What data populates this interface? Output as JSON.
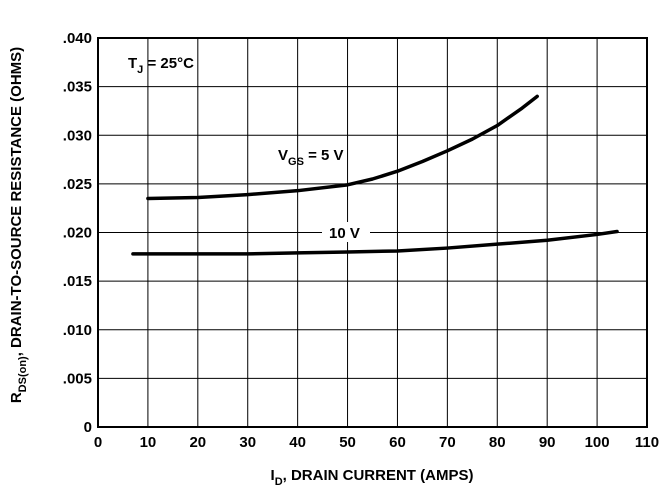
{
  "chart_data": {
    "type": "line",
    "xlabel": {
      "main": "I",
      "sub": "D",
      "rest": ", DRAIN CURRENT (AMPS)"
    },
    "ylabel": {
      "main": "R",
      "sub": "DS(on)",
      "rest": ", DRAIN-TO-SOURCE RESISTANCE (OHMS)"
    },
    "xlim": [
      0,
      110
    ],
    "ylim": [
      0,
      0.04
    ],
    "grid": true,
    "x_ticks": [
      "0",
      "10",
      "20",
      "30",
      "40",
      "50",
      "60",
      "70",
      "80",
      "90",
      "100",
      "110"
    ],
    "y_ticks": [
      "0",
      ".005",
      ".010",
      ".015",
      ".020",
      ".025",
      ".030",
      ".035",
      ".040"
    ],
    "annotations": {
      "temp": {
        "main": "T",
        "sub": "J",
        "rest": " = 25°C"
      },
      "vgs5": {
        "main": "V",
        "sub": "GS",
        "rest": " = 5 V"
      },
      "vgs10": {
        "main": "10 V"
      }
    },
    "series": [
      {
        "name": "VGS = 5 V",
        "x": [
          10,
          20,
          30,
          40,
          50,
          55,
          60,
          65,
          70,
          75,
          80,
          85,
          88
        ],
        "y": [
          0.0235,
          0.0236,
          0.0239,
          0.0243,
          0.0249,
          0.0255,
          0.0263,
          0.0273,
          0.0284,
          0.0296,
          0.031,
          0.0328,
          0.034
        ]
      },
      {
        "name": "10 V",
        "x": [
          7,
          20,
          30,
          40,
          50,
          60,
          70,
          80,
          90,
          100,
          104
        ],
        "y": [
          0.0178,
          0.0178,
          0.0178,
          0.0179,
          0.018,
          0.0181,
          0.0184,
          0.0188,
          0.0192,
          0.0198,
          0.0201
        ]
      }
    ]
  }
}
